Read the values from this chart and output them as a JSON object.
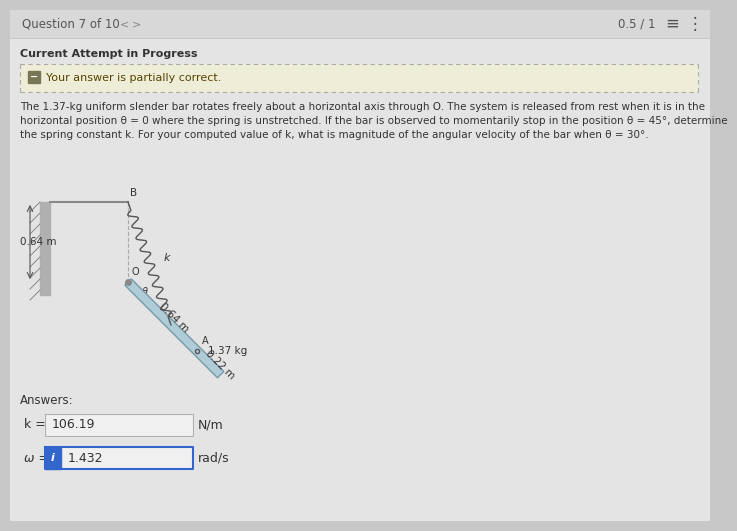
{
  "bg_color": "#cccccc",
  "content_bg": "#e8e8e8",
  "header_text": "Question 7 of 10",
  "score": "0.5 / 1",
  "section_title": "Current Attempt in Progress",
  "banner_text": "Your answer is partially correct.",
  "banner_bg": "#f0efe0",
  "banner_border": "#aaaaaa",
  "problem_line1": "The 1.37-kg uniform slender bar rotates freely about a horizontal axis through O. The system is released from rest when it is in the",
  "problem_line2": "horizontal position θ = 0 where the spring is unstretched. If the bar is observed to momentarily stop in the position θ = 45°, determine",
  "problem_line3": "the spring constant k. For your computed value of k, what is magnitude of the angular velocity of the bar when θ = 30°.",
  "answers_label": "Answers:",
  "k_label": "k =",
  "k_value": "106.19",
  "k_unit": "N/m",
  "omega_label": "ω =",
  "omega_value": "1.432",
  "omega_unit": "rad/s",
  "dim_064m_left": "0.64 m",
  "dim_064m_bar": "0.64 m",
  "dim_022m": "0.22 m",
  "mass_label": "1.37 kg",
  "label_A": "A",
  "label_B": "B",
  "label_O": "O",
  "label_k": "k",
  "label_theta": "θ"
}
